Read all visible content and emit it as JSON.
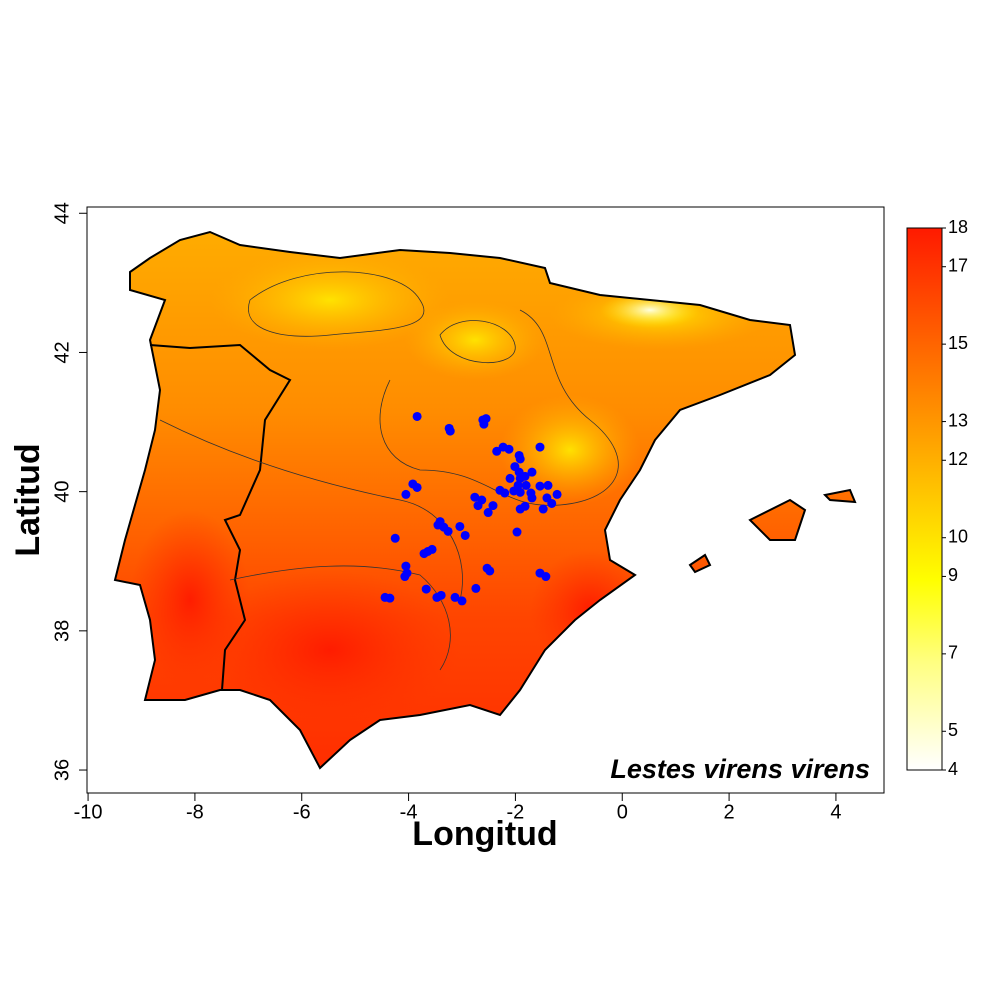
{
  "chart_data": {
    "type": "scatter",
    "xlabel": "Longitud",
    "ylabel": "Latitud",
    "annotation": "Lestes virens virens",
    "xlim": [
      -10.02,
      4.9
    ],
    "ylim": [
      35.67,
      44.09
    ],
    "xticks": [
      -10,
      -8,
      -6,
      -4,
      -2,
      0,
      2,
      4
    ],
    "yticks": [
      36,
      38,
      40,
      42,
      44
    ],
    "color": "#0000ff",
    "x": [
      -3.84,
      -3.24,
      -3.22,
      -2.61,
      -2.55,
      -2.59,
      -4.05,
      -3.92,
      -3.84,
      -4.25,
      -3.41,
      -3.34,
      -3.26,
      -3.45,
      -3.04,
      -2.94,
      -3.71,
      -3.64,
      -3.56,
      -4.05,
      -4.03,
      -4.07,
      -3.67,
      -3.47,
      -3.39,
      -3.13,
      -3.0,
      -4.44,
      -4.35,
      -2.53,
      -2.48,
      -2.74,
      -2.76,
      -2.7,
      -2.63,
      -2.51,
      -2.42,
      -2.35,
      -2.23,
      -2.12,
      -1.93,
      -1.91,
      -1.54,
      -2.01,
      -1.93,
      -2.1,
      -1.91,
      -1.82,
      -1.69,
      -1.95,
      -2.03,
      -1.91,
      -1.8,
      -1.71,
      -1.54,
      -1.39,
      -1.22,
      -1.41,
      -1.32,
      -1.48,
      -1.82,
      -1.91,
      -1.97,
      -2.29,
      -2.2,
      -1.69,
      -1.54,
      -1.43
    ],
    "y": [
      41.08,
      40.91,
      40.87,
      41.03,
      41.05,
      40.97,
      39.96,
      40.11,
      40.06,
      39.33,
      39.57,
      39.49,
      39.43,
      39.52,
      39.5,
      39.37,
      39.11,
      39.14,
      39.17,
      38.93,
      38.83,
      38.78,
      38.6,
      38.48,
      38.51,
      38.48,
      38.43,
      38.48,
      38.47,
      38.9,
      38.86,
      38.61,
      39.92,
      39.8,
      39.88,
      39.7,
      39.8,
      40.58,
      40.64,
      40.61,
      40.52,
      40.47,
      40.64,
      40.36,
      40.28,
      40.19,
      40.19,
      40.22,
      40.28,
      40.09,
      40.01,
      39.99,
      40.09,
      39.98,
      40.08,
      40.09,
      39.96,
      39.91,
      39.83,
      39.75,
      39.79,
      39.75,
      39.42,
      40.02,
      39.98,
      39.91,
      38.83,
      38.78
    ],
    "colorbar": {
      "lim": [
        4,
        18
      ],
      "ticks": [
        4,
        5,
        7,
        9,
        10,
        12,
        13,
        15,
        17,
        18
      ]
    }
  }
}
